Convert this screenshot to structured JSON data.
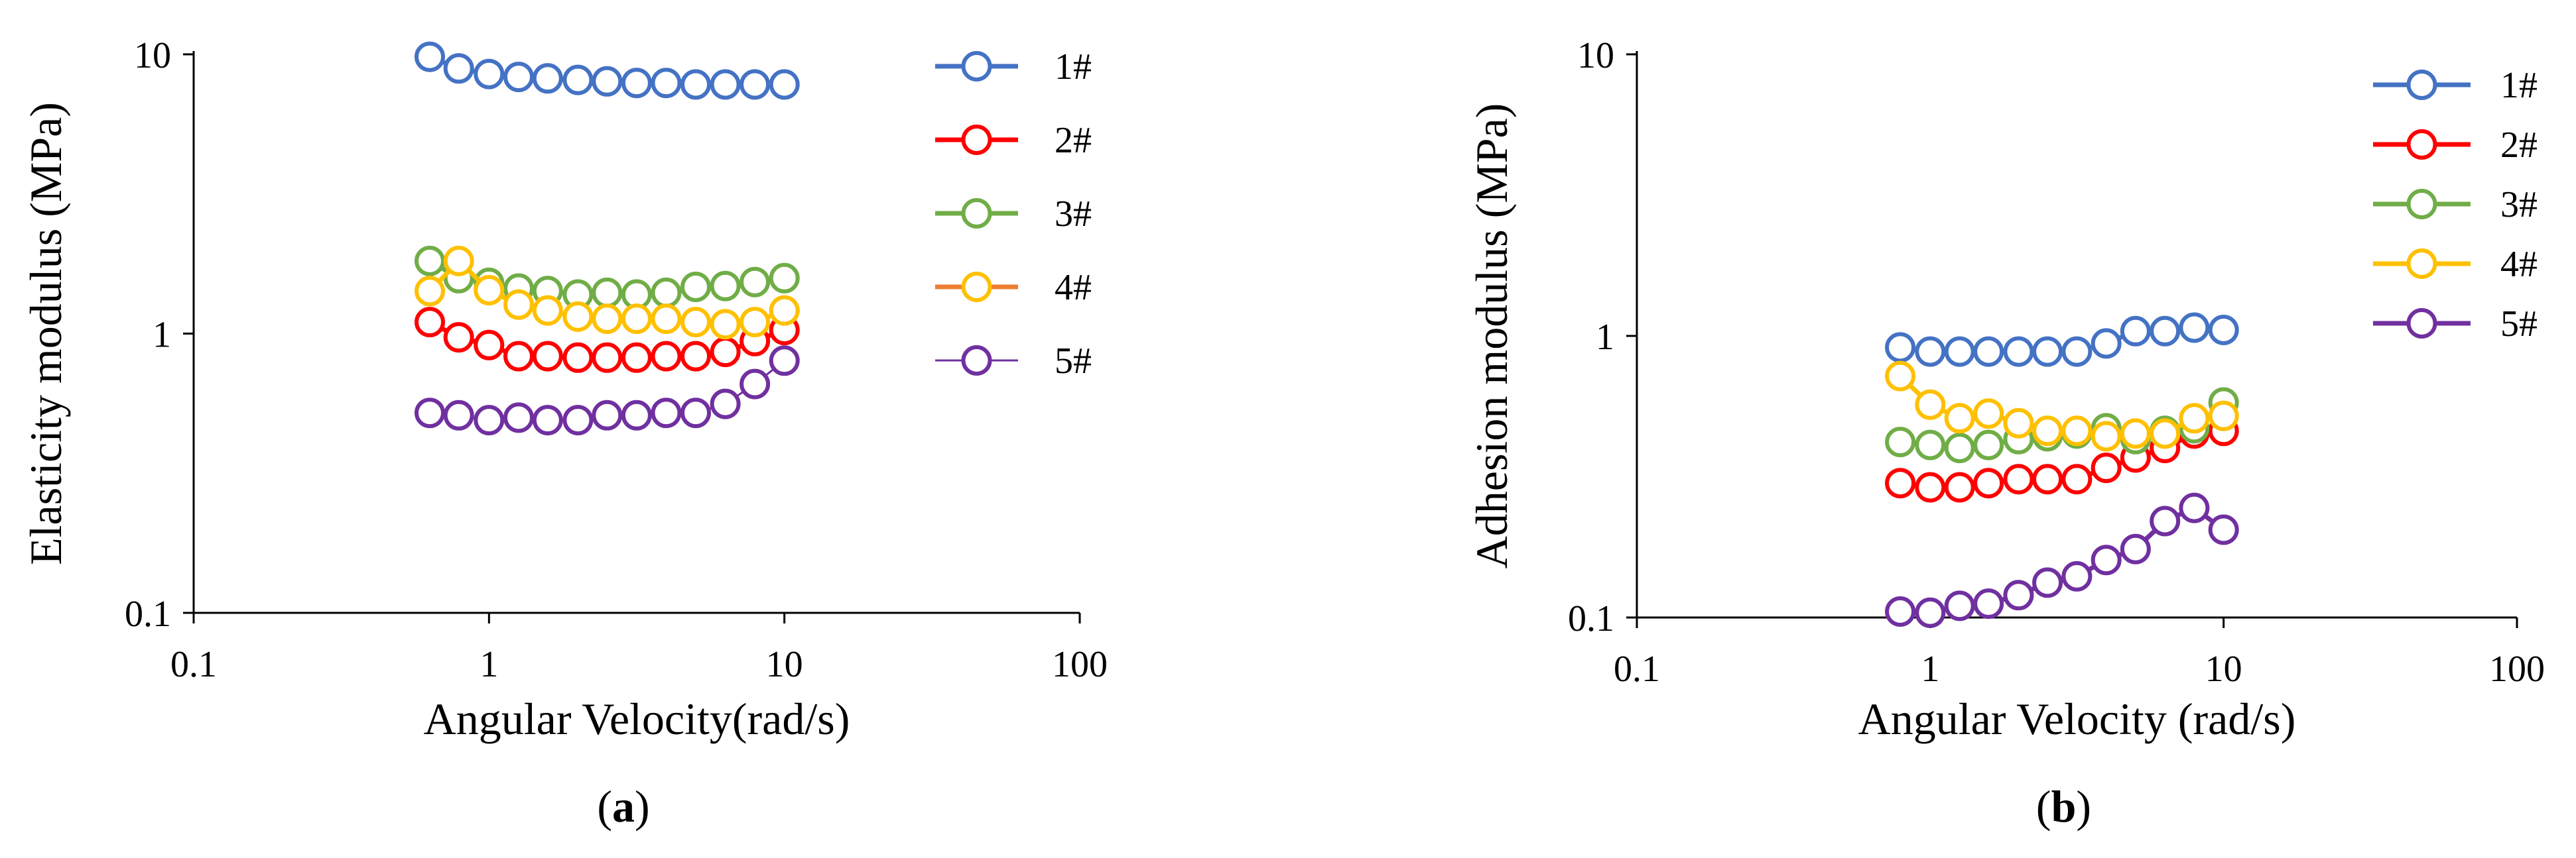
{
  "chart_data": [
    {
      "type": "line",
      "panel": "a",
      "caption": "(a)",
      "caption_parts": {
        "open": "(",
        "letter": "a",
        "close": ")"
      },
      "xscale": "log",
      "yscale": "log",
      "xlabel": "Angular Velocity(rad/s)",
      "ylabel": "Elasticity modulus (MPa)",
      "xlim": [
        0.1,
        100
      ],
      "ylim": [
        0.1,
        10
      ],
      "xticks": [
        {
          "v": 0.1,
          "label": "0.1"
        },
        {
          "v": 1,
          "label": "1"
        },
        {
          "v": 10,
          "label": "10"
        },
        {
          "v": 100,
          "label": "100"
        }
      ],
      "yticks": [
        {
          "v": 0.1,
          "label": "0.1"
        },
        {
          "v": 1,
          "label": "1"
        },
        {
          "v": 10,
          "label": "10"
        }
      ],
      "grid": false,
      "legend_position": "right",
      "x": [
        0.63,
        0.79,
        1.0,
        1.26,
        1.58,
        2.0,
        2.51,
        3.16,
        3.98,
        5.01,
        6.31,
        7.94,
        10.0
      ],
      "series": [
        {
          "name": "1#",
          "color": "#4472C4",
          "values": [
            9.8,
            8.9,
            8.5,
            8.3,
            8.2,
            8.1,
            8.0,
            7.9,
            7.9,
            7.8,
            7.8,
            7.8,
            7.8
          ]
        },
        {
          "name": "2#",
          "color": "#FF0000",
          "values": [
            1.1,
            0.97,
            0.91,
            0.83,
            0.83,
            0.82,
            0.82,
            0.82,
            0.83,
            0.83,
            0.86,
            0.94,
            1.03
          ]
        },
        {
          "name": "3#",
          "color": "#70AD47",
          "values": [
            1.82,
            1.58,
            1.52,
            1.45,
            1.42,
            1.38,
            1.4,
            1.38,
            1.4,
            1.47,
            1.48,
            1.53,
            1.58
          ]
        },
        {
          "name": "4#",
          "color": "#FFC000",
          "legend_line_color": "#ED7D31",
          "values": [
            1.42,
            1.82,
            1.43,
            1.27,
            1.21,
            1.15,
            1.13,
            1.13,
            1.13,
            1.1,
            1.08,
            1.1,
            1.21
          ]
        },
        {
          "name": "5#",
          "color": "#7030A0",
          "thin": true,
          "values": [
            0.52,
            0.51,
            0.49,
            0.5,
            0.49,
            0.49,
            0.51,
            0.51,
            0.52,
            0.52,
            0.56,
            0.66,
            0.8
          ]
        }
      ]
    },
    {
      "type": "line",
      "panel": "b",
      "caption": "(b)",
      "caption_parts": {
        "open": "(",
        "letter": "b",
        "close": ")"
      },
      "xscale": "log",
      "yscale": "log",
      "xlabel": "Angular Velocity (rad/s)",
      "ylabel": "Adhesion modulus (MPa)",
      "xlim": [
        0.1,
        100
      ],
      "ylim": [
        0.1,
        10
      ],
      "xticks": [
        {
          "v": 0.1,
          "label": "0.1"
        },
        {
          "v": 1,
          "label": "1"
        },
        {
          "v": 10,
          "label": "10"
        },
        {
          "v": 100,
          "label": "100"
        }
      ],
      "yticks": [
        {
          "v": 0.1,
          "label": "0.1"
        },
        {
          "v": 1,
          "label": "1"
        },
        {
          "v": 10,
          "label": "10"
        }
      ],
      "grid": false,
      "legend_position": "top-right",
      "x": [
        0.79,
        1.0,
        1.26,
        1.58,
        2.0,
        2.51,
        3.16,
        3.98,
        5.01,
        6.31,
        7.94,
        10.0
      ],
      "series": [
        {
          "name": "1#",
          "color": "#4472C4",
          "values": [
            0.91,
            0.88,
            0.88,
            0.88,
            0.88,
            0.88,
            0.88,
            0.94,
            1.04,
            1.04,
            1.07,
            1.05
          ]
        },
        {
          "name": "2#",
          "color": "#FF0000",
          "values": [
            0.3,
            0.29,
            0.29,
            0.3,
            0.31,
            0.31,
            0.31,
            0.34,
            0.37,
            0.4,
            0.45,
            0.46
          ]
        },
        {
          "name": "3#",
          "color": "#70AD47",
          "values": [
            0.42,
            0.41,
            0.4,
            0.41,
            0.43,
            0.44,
            0.45,
            0.47,
            0.43,
            0.46,
            0.47,
            0.58
          ]
        },
        {
          "name": "4#",
          "color": "#FFC000",
          "values": [
            0.72,
            0.57,
            0.51,
            0.53,
            0.49,
            0.46,
            0.46,
            0.44,
            0.45,
            0.45,
            0.51,
            0.52
          ]
        },
        {
          "name": "5#",
          "color": "#7030A0",
          "values": [
            0.105,
            0.104,
            0.11,
            0.112,
            0.12,
            0.133,
            0.14,
            0.16,
            0.175,
            0.22,
            0.245,
            0.205
          ]
        }
      ]
    }
  ]
}
